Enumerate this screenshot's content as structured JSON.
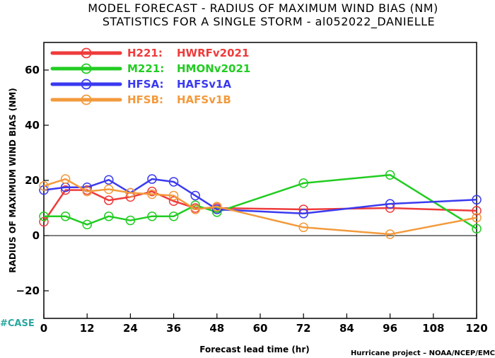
{
  "chart_data": {
    "type": "line",
    "title": "MODEL FORECAST - RADIUS OF MAXIMUM WIND BIAS (NM)",
    "subtitle": "STATISTICS FOR A SINGLE STORM - al052022_DANIELLE",
    "xlabel": "Forecast lead time (hr)",
    "ylabel": "RADIUS OF MAXIMUM WIND BIAS (NM)",
    "xlim": [
      0,
      120
    ],
    "ylim": [
      -30,
      70
    ],
    "xticks": [
      "0",
      "12",
      "24",
      "36",
      "48",
      "60",
      "72",
      "84",
      "96",
      "108",
      "120"
    ],
    "yticks": [
      "−20",
      "0",
      "20",
      "40",
      "60"
    ],
    "zero_line": true,
    "legend_position": "top-left",
    "series": [
      {
        "code": "H221:",
        "name": "HWRFv2021",
        "color": "#ee3b3b",
        "points": [
          [
            0,
            5
          ],
          [
            6,
            16.5
          ],
          [
            12,
            16.5
          ],
          [
            18,
            12.8
          ],
          [
            24,
            14
          ],
          [
            30,
            16
          ],
          [
            36,
            12.5
          ],
          [
            42,
            10
          ],
          [
            48,
            10
          ],
          [
            72,
            9.5
          ],
          [
            96,
            10
          ],
          [
            120,
            9
          ]
        ]
      },
      {
        "code": "M221:",
        "name": "HMONv2021",
        "color": "#22cc22",
        "points": [
          [
            0,
            7
          ],
          [
            6,
            7
          ],
          [
            12,
            4
          ],
          [
            18,
            7
          ],
          [
            24,
            5.5
          ],
          [
            30,
            7
          ],
          [
            36,
            7
          ],
          [
            42,
            11
          ],
          [
            48,
            8.5
          ],
          [
            72,
            19
          ],
          [
            96,
            22
          ],
          [
            120,
            2.5
          ]
        ]
      },
      {
        "code": "HFSA:",
        "name": "HAFSv1A",
        "color": "#3a3af0",
        "points": [
          [
            0,
            16.5
          ],
          [
            6,
            17.5
          ],
          [
            12,
            17.5
          ],
          [
            18,
            20.2
          ],
          [
            24,
            15.5
          ],
          [
            30,
            20.5
          ],
          [
            36,
            19.5
          ],
          [
            42,
            14.5
          ],
          [
            48,
            9.5
          ],
          [
            72,
            8
          ],
          [
            96,
            11.5
          ],
          [
            120,
            13
          ]
        ]
      },
      {
        "code": "HFSB:",
        "name": "HAFSv1B",
        "color": "#f39a3c",
        "points": [
          [
            0,
            18
          ],
          [
            6,
            20.5
          ],
          [
            12,
            16
          ],
          [
            18,
            16.8
          ],
          [
            24,
            15.5
          ],
          [
            30,
            15
          ],
          [
            36,
            14.5
          ],
          [
            42,
            9.5
          ],
          [
            48,
            10.5
          ],
          [
            72,
            3
          ],
          [
            96,
            0.5
          ],
          [
            120,
            6.5
          ]
        ]
      }
    ]
  },
  "brand": "#CASE",
  "credit": "Hurricane project – NOAA/NCEP/EMC"
}
